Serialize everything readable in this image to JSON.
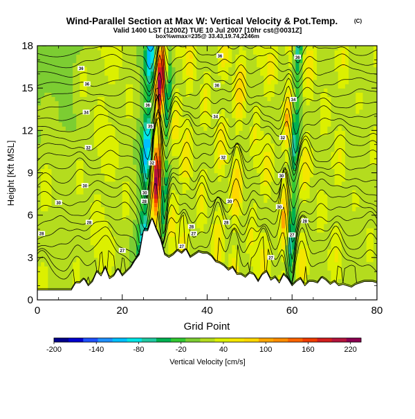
{
  "chart_data": {
    "type": "heatmap",
    "title": "Wind-Parallel Section at Max W: Vertical Velocity & Pot.Temp.",
    "title_badge": "(C)",
    "subtitle": "Valid 1400 LST (1200Z) TUE 10 Jul 2007 [10hr cst@0031Z]",
    "subtitle2": "box%wmax=235@ 33.43,19.74,2246m",
    "xlabel": "Grid Point",
    "ylabel": "Height [Kft MSL]",
    "xlim": [
      0,
      80
    ],
    "ylim": [
      0,
      18
    ],
    "xticks": [
      "0",
      "20",
      "40",
      "60",
      "80"
    ],
    "yticks": [
      "0",
      "3",
      "6",
      "9",
      "12",
      "15",
      "18"
    ],
    "colorbar": {
      "label": "Vertical Velocity [cm/s]",
      "tick_labels": [
        "-200",
        "-140",
        "-80",
        "-20",
        "40",
        "100",
        "160",
        "220"
      ],
      "tick_values": [
        -200,
        -140,
        -80,
        -20,
        40,
        100,
        160,
        220
      ],
      "range": [
        -200,
        235
      ],
      "colors": [
        "#00008b",
        "#0000cd",
        "#1e50ff",
        "#1e90ff",
        "#00bfff",
        "#00e5e5",
        "#20c8a0",
        "#00b050",
        "#32c832",
        "#7ccd32",
        "#b4dc1e",
        "#dcf000",
        "#f5e600",
        "#ffd700",
        "#ffa500",
        "#ff8c00",
        "#ff6400",
        "#f03c00",
        "#d21e1e",
        "#b4143c",
        "#8b0050"
      ]
    },
    "max_w": 235,
    "terrain_kft": [
      [
        0,
        0.7
      ],
      [
        4,
        0.7
      ],
      [
        8,
        0.7
      ],
      [
        9,
        1.2
      ],
      [
        10,
        1.2
      ],
      [
        11,
        1.5
      ],
      [
        12,
        1.0
      ],
      [
        13,
        1.3
      ],
      [
        14,
        2.0
      ],
      [
        15,
        1.7
      ],
      [
        16,
        2.3
      ],
      [
        17,
        1.5
      ],
      [
        18,
        1.7
      ],
      [
        19,
        2.2
      ],
      [
        20,
        1.7
      ],
      [
        21,
        2.0
      ],
      [
        22,
        2.3
      ],
      [
        23,
        2.8
      ],
      [
        24,
        3.2
      ],
      [
        25,
        4.9
      ],
      [
        26,
        4.9
      ],
      [
        27,
        5.8
      ],
      [
        28,
        5.0
      ],
      [
        29,
        4.3
      ],
      [
        30,
        3.2
      ],
      [
        31,
        3.0
      ],
      [
        32,
        3.2
      ],
      [
        33,
        3.5
      ],
      [
        34,
        3.3
      ],
      [
        35,
        3.6
      ],
      [
        36,
        3.0
      ],
      [
        37,
        3.2
      ],
      [
        38,
        3.4
      ],
      [
        39,
        3.3
      ],
      [
        40,
        3.3
      ],
      [
        41,
        3.1
      ],
      [
        42,
        2.7
      ],
      [
        43,
        2.6
      ],
      [
        44,
        2.4
      ],
      [
        45,
        2.1
      ],
      [
        46,
        2.3
      ],
      [
        47,
        1.8
      ],
      [
        48,
        1.8
      ],
      [
        49,
        1.6
      ],
      [
        50,
        1.9
      ],
      [
        51,
        1.8
      ],
      [
        52,
        1.3
      ],
      [
        53,
        1.8
      ],
      [
        54,
        2.0
      ],
      [
        55,
        1.4
      ],
      [
        56,
        1.6
      ],
      [
        57,
        1.2
      ],
      [
        58,
        1.8
      ],
      [
        59,
        1.5
      ],
      [
        60,
        1.0
      ],
      [
        61,
        1.3
      ],
      [
        62,
        1.5
      ],
      [
        63,
        1.0
      ],
      [
        64,
        1.3
      ],
      [
        65,
        1.3
      ],
      [
        66,
        1.2
      ],
      [
        67,
        1.6
      ],
      [
        68,
        1.4
      ],
      [
        69,
        1.1
      ],
      [
        70,
        1.3
      ],
      [
        71,
        1.0
      ],
      [
        72,
        1.1
      ],
      [
        74,
        0.9
      ],
      [
        75,
        1.1
      ],
      [
        77,
        1.3
      ],
      [
        79,
        1.3
      ],
      [
        80,
        1.2
      ]
    ],
    "updraft_bands": [
      {
        "x": 1,
        "w": 40,
        "width": 2.5,
        "top": 12
      },
      {
        "x": 5,
        "w": 20,
        "width": 2.0,
        "top": 10
      },
      {
        "x": 9,
        "w": 35,
        "width": 2.0,
        "top": 16
      },
      {
        "x": 13,
        "w": 40,
        "width": 2.0,
        "top": 18
      },
      {
        "x": 16,
        "w": 45,
        "width": 2.2,
        "top": 18
      },
      {
        "x": 20,
        "w": 35,
        "width": 2.0,
        "top": 18
      },
      {
        "x": 24.5,
        "w": -120,
        "width": 1.1,
        "top": 18
      },
      {
        "x": 27.2,
        "w": 235,
        "width": 1.2,
        "top": 18
      },
      {
        "x": 28.8,
        "w": -90,
        "width": 1.0,
        "top": 18
      },
      {
        "x": 31,
        "w": 60,
        "width": 1.5,
        "top": 18
      },
      {
        "x": 34,
        "w": 70,
        "width": 1.5,
        "top": 18
      },
      {
        "x": 38,
        "w": 55,
        "width": 1.6,
        "top": 18
      },
      {
        "x": 42,
        "w": 70,
        "width": 1.6,
        "top": 18
      },
      {
        "x": 46,
        "w": 90,
        "width": 1.5,
        "top": 18
      },
      {
        "x": 50,
        "w": 50,
        "width": 1.4,
        "top": 18
      },
      {
        "x": 53,
        "w": 60,
        "width": 1.8,
        "top": 18
      },
      {
        "x": 57.5,
        "w": 100,
        "width": 1.2,
        "top": 18
      },
      {
        "x": 59.3,
        "w": -80,
        "width": 1.0,
        "top": 18
      },
      {
        "x": 62,
        "w": 65,
        "width": 1.6,
        "top": 18
      },
      {
        "x": 66,
        "w": 40,
        "width": 2.0,
        "top": 18
      },
      {
        "x": 70,
        "w": 50,
        "width": 2.0,
        "top": 18
      },
      {
        "x": 74,
        "w": 30,
        "width": 2.2,
        "top": 18
      },
      {
        "x": 78,
        "w": 35,
        "width": 2.0,
        "top": 18
      }
    ],
    "contour_labels": [
      {
        "x": 10.3,
        "y": 16.4,
        "text": "36"
      },
      {
        "x": 11.7,
        "y": 15.3,
        "text": "36"
      },
      {
        "x": 11.5,
        "y": 13.3,
        "text": "34"
      },
      {
        "x": 12.0,
        "y": 10.8,
        "text": "32"
      },
      {
        "x": 11.2,
        "y": 8.1,
        "text": "30"
      },
      {
        "x": 12.2,
        "y": 5.5,
        "text": "28"
      },
      {
        "x": 5.0,
        "y": 6.9,
        "text": "30"
      },
      {
        "x": 1.0,
        "y": 4.7,
        "text": "28"
      },
      {
        "x": 26.0,
        "y": 13.8,
        "text": "36"
      },
      {
        "x": 26.6,
        "y": 12.3,
        "text": "35"
      },
      {
        "x": 27.0,
        "y": 9.7,
        "text": "32"
      },
      {
        "x": 25.3,
        "y": 7.6,
        "text": "30"
      },
      {
        "x": 25.2,
        "y": 7.0,
        "text": "28"
      },
      {
        "x": 43.0,
        "y": 17.3,
        "text": "36"
      },
      {
        "x": 42.3,
        "y": 15.2,
        "text": "36"
      },
      {
        "x": 42.0,
        "y": 13.0,
        "text": "34"
      },
      {
        "x": 43.8,
        "y": 10.1,
        "text": "32"
      },
      {
        "x": 45.3,
        "y": 7.0,
        "text": "30"
      },
      {
        "x": 44.5,
        "y": 5.5,
        "text": "28"
      },
      {
        "x": 36.3,
        "y": 5.2,
        "text": "28"
      },
      {
        "x": 36.8,
        "y": 4.7,
        "text": "27"
      },
      {
        "x": 61.3,
        "y": 17.2,
        "text": "36"
      },
      {
        "x": 60.3,
        "y": 14.2,
        "text": "34"
      },
      {
        "x": 57.8,
        "y": 11.5,
        "text": "32"
      },
      {
        "x": 57.5,
        "y": 8.8,
        "text": "30"
      },
      {
        "x": 57.0,
        "y": 6.6,
        "text": "30"
      },
      {
        "x": 63.0,
        "y": 5.6,
        "text": "28"
      },
      {
        "x": 60.0,
        "y": 4.6,
        "text": "27"
      },
      {
        "x": 55.0,
        "y": 3.0,
        "text": "27"
      },
      {
        "x": 34.0,
        "y": 3.8,
        "text": "27"
      },
      {
        "x": 20.0,
        "y": 3.5,
        "text": "27"
      }
    ]
  }
}
